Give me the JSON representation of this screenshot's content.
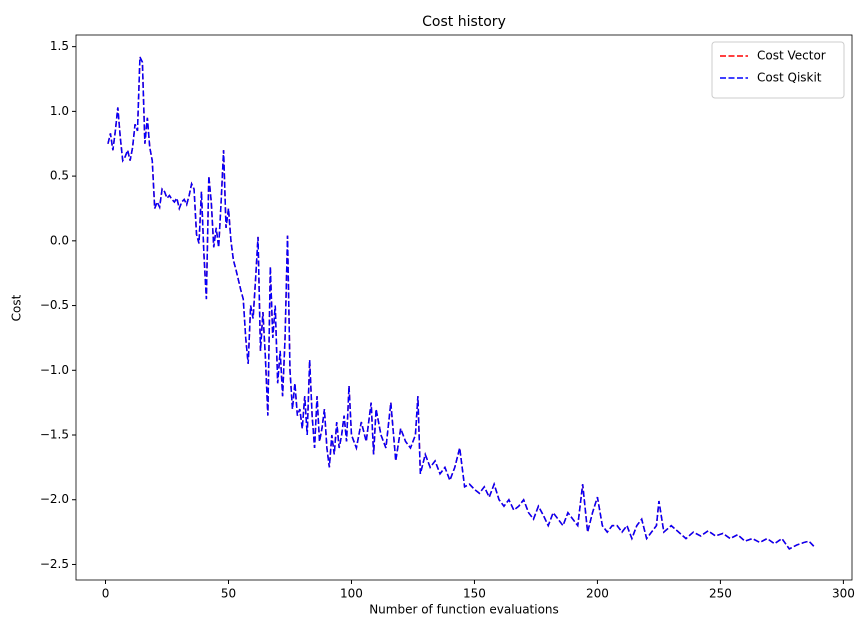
{
  "chart_data": {
    "type": "line",
    "title": "Cost history",
    "x_label": "Number of function evaluations",
    "y_label": "Cost",
    "x": [
      1,
      2,
      3,
      4,
      5,
      6,
      7,
      8,
      9,
      10,
      11,
      12,
      13,
      14,
      15,
      16,
      17,
      18,
      19,
      20,
      21,
      22,
      23,
      24,
      25,
      26,
      27,
      28,
      29,
      30,
      31,
      32,
      33,
      34,
      35,
      36,
      37,
      38,
      39,
      40,
      41,
      42,
      43,
      44,
      45,
      46,
      47,
      48,
      49,
      50,
      51,
      52,
      53,
      54,
      55,
      56,
      57,
      58,
      59,
      60,
      61,
      62,
      63,
      64,
      65,
      66,
      67,
      68,
      69,
      70,
      71,
      72,
      73,
      74,
      75,
      76,
      77,
      78,
      79,
      80,
      81,
      82,
      83,
      84,
      85,
      86,
      87,
      88,
      89,
      90,
      91,
      92,
      93,
      94,
      95,
      96,
      97,
      98,
      99,
      100,
      102,
      104,
      106,
      108,
      109,
      110,
      112,
      114,
      116,
      118,
      120,
      122,
      124,
      126,
      127,
      128,
      130,
      132,
      134,
      136,
      138,
      140,
      142,
      144,
      146,
      148,
      150,
      152,
      154,
      156,
      158,
      160,
      162,
      164,
      166,
      168,
      170,
      172,
      174,
      176,
      178,
      180,
      182,
      184,
      186,
      188,
      190,
      192,
      194,
      196,
      198,
      200,
      202,
      204,
      206,
      208,
      210,
      212,
      214,
      216,
      218,
      220,
      222,
      224,
      225,
      227,
      230,
      233,
      236,
      239,
      242,
      245,
      248,
      251,
      254,
      257,
      260,
      263,
      266,
      269,
      272,
      275,
      278,
      281,
      284,
      286,
      288
    ],
    "series": [
      {
        "name": "Cost Vector",
        "color": "#ff0000",
        "values": [
          0.75,
          0.83,
          0.7,
          0.85,
          1.03,
          0.8,
          0.62,
          0.65,
          0.7,
          0.62,
          0.72,
          0.9,
          0.85,
          1.42,
          1.38,
          0.75,
          0.95,
          0.72,
          0.62,
          0.25,
          0.3,
          0.26,
          0.4,
          0.38,
          0.33,
          0.35,
          0.32,
          0.3,
          0.33,
          0.25,
          0.3,
          0.32,
          0.28,
          0.35,
          0.44,
          0.4,
          0.05,
          -0.02,
          0.38,
          -0.1,
          -0.45,
          0.5,
          0.3,
          -0.05,
          0.1,
          -0.05,
          0.3,
          0.7,
          0.1,
          0.25,
          0.0,
          -0.15,
          -0.22,
          -0.3,
          -0.38,
          -0.45,
          -0.75,
          -0.95,
          -0.5,
          -0.6,
          -0.3,
          0.03,
          -0.85,
          -0.55,
          -0.9,
          -1.35,
          -0.2,
          -0.75,
          -0.5,
          -1.1,
          -0.85,
          -1.2,
          -0.75,
          0.04,
          -1.0,
          -1.3,
          -1.1,
          -1.35,
          -1.3,
          -1.45,
          -1.2,
          -1.5,
          -0.92,
          -1.35,
          -1.6,
          -1.2,
          -1.55,
          -1.45,
          -1.3,
          -1.6,
          -1.75,
          -1.5,
          -1.65,
          -1.4,
          -1.6,
          -1.5,
          -1.35,
          -1.55,
          -1.12,
          -1.5,
          -1.6,
          -1.4,
          -1.55,
          -1.25,
          -1.65,
          -1.3,
          -1.5,
          -1.6,
          -1.25,
          -1.7,
          -1.45,
          -1.55,
          -1.6,
          -1.5,
          -1.2,
          -1.8,
          -1.65,
          -1.75,
          -1.7,
          -1.8,
          -1.75,
          -1.85,
          -1.75,
          -1.6,
          -1.9,
          -1.88,
          -1.92,
          -1.95,
          -1.9,
          -1.98,
          -1.88,
          -2.0,
          -2.05,
          -2.0,
          -2.08,
          -2.05,
          -2.0,
          -2.1,
          -2.15,
          -2.05,
          -2.12,
          -2.2,
          -2.1,
          -2.15,
          -2.2,
          -2.1,
          -2.15,
          -2.2,
          -1.88,
          -2.25,
          -2.1,
          -1.98,
          -2.2,
          -2.25,
          -2.2,
          -2.2,
          -2.25,
          -2.2,
          -2.3,
          -2.2,
          -2.15,
          -2.3,
          -2.25,
          -2.2,
          -2.01,
          -2.25,
          -2.2,
          -2.25,
          -2.3,
          -2.25,
          -2.28,
          -2.24,
          -2.28,
          -2.26,
          -2.3,
          -2.27,
          -2.32,
          -2.3,
          -2.33,
          -2.3,
          -2.34,
          -2.3,
          -2.38,
          -2.35,
          -2.33,
          -2.32,
          -2.36
        ]
      },
      {
        "name": "Cost Qiskit",
        "color": "#0000ff",
        "values": [
          0.75,
          0.83,
          0.7,
          0.85,
          1.03,
          0.8,
          0.62,
          0.65,
          0.7,
          0.62,
          0.72,
          0.9,
          0.85,
          1.42,
          1.38,
          0.75,
          0.95,
          0.72,
          0.62,
          0.25,
          0.3,
          0.26,
          0.4,
          0.38,
          0.33,
          0.35,
          0.32,
          0.3,
          0.33,
          0.25,
          0.3,
          0.32,
          0.28,
          0.35,
          0.44,
          0.4,
          0.05,
          -0.02,
          0.38,
          -0.1,
          -0.45,
          0.5,
          0.3,
          -0.05,
          0.1,
          -0.05,
          0.3,
          0.7,
          0.1,
          0.25,
          0.0,
          -0.15,
          -0.22,
          -0.3,
          -0.38,
          -0.45,
          -0.75,
          -0.95,
          -0.5,
          -0.6,
          -0.3,
          0.03,
          -0.85,
          -0.55,
          -0.9,
          -1.35,
          -0.2,
          -0.75,
          -0.5,
          -1.1,
          -0.85,
          -1.2,
          -0.75,
          0.04,
          -1.0,
          -1.3,
          -1.1,
          -1.35,
          -1.3,
          -1.45,
          -1.2,
          -1.5,
          -0.92,
          -1.35,
          -1.6,
          -1.2,
          -1.55,
          -1.45,
          -1.3,
          -1.6,
          -1.75,
          -1.5,
          -1.65,
          -1.4,
          -1.6,
          -1.5,
          -1.35,
          -1.55,
          -1.12,
          -1.5,
          -1.6,
          -1.4,
          -1.55,
          -1.25,
          -1.65,
          -1.3,
          -1.5,
          -1.6,
          -1.25,
          -1.7,
          -1.45,
          -1.55,
          -1.6,
          -1.5,
          -1.2,
          -1.8,
          -1.65,
          -1.75,
          -1.7,
          -1.8,
          -1.75,
          -1.85,
          -1.75,
          -1.6,
          -1.9,
          -1.88,
          -1.92,
          -1.95,
          -1.9,
          -1.98,
          -1.88,
          -2.0,
          -2.05,
          -2.0,
          -2.08,
          -2.05,
          -2.0,
          -2.1,
          -2.15,
          -2.05,
          -2.12,
          -2.2,
          -2.1,
          -2.15,
          -2.2,
          -2.1,
          -2.15,
          -2.2,
          -1.88,
          -2.25,
          -2.1,
          -1.98,
          -2.2,
          -2.25,
          -2.2,
          -2.2,
          -2.25,
          -2.2,
          -2.3,
          -2.2,
          -2.15,
          -2.3,
          -2.25,
          -2.2,
          -2.01,
          -2.25,
          -2.2,
          -2.25,
          -2.3,
          -2.25,
          -2.28,
          -2.24,
          -2.28,
          -2.26,
          -2.3,
          -2.27,
          -2.32,
          -2.3,
          -2.33,
          -2.3,
          -2.34,
          -2.3,
          -2.38,
          -2.35,
          -2.33,
          -2.32,
          -2.36
        ]
      }
    ],
    "line_style": "dashed",
    "legend": "upper right",
    "xlim": [
      -12,
      303.5
    ],
    "xticks": [
      0,
      50,
      100,
      150,
      200,
      250,
      300
    ],
    "ylim": [
      -2.62,
      1.59
    ],
    "yticks": [
      {
        "value": -2.5,
        "label": "−2.5"
      },
      {
        "value": -2.0,
        "label": "−2.0"
      },
      {
        "value": -1.5,
        "label": "−1.5"
      },
      {
        "value": -1.0,
        "label": "−1.0"
      },
      {
        "value": -0.5,
        "label": "−0.5"
      },
      {
        "value": 0.0,
        "label": "0.0"
      },
      0.5,
      {
        "value": 1.0,
        "label": "1.0"
      },
      1.5
    ]
  }
}
